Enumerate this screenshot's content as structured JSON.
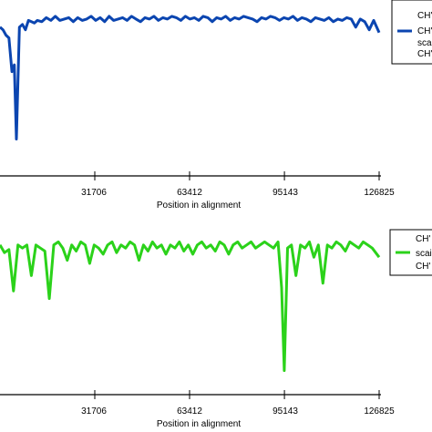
{
  "chart_data": [
    {
      "type": "line",
      "xlabel": "Position in alignment",
      "ylabel": "",
      "xlim": [
        0,
        126825
      ],
      "ylim": [
        0,
        1
      ],
      "xticks": [
        31706,
        63412,
        95143,
        126825
      ],
      "tick_labels": [
        "31706",
        "63412",
        "95143",
        "126825"
      ],
      "legend": {
        "placement": "right",
        "entries": [
          "CH'",
          "CH'",
          "scai",
          "CH'"
        ]
      },
      "series": [
        {
          "color": "#0b45b0",
          "x": [
            0,
            1000,
            2000,
            3000,
            4000,
            4800,
            5500,
            6500,
            7500,
            8500,
            9500,
            10500,
            11500,
            12500,
            14000,
            15500,
            17000,
            18500,
            20000,
            21500,
            23000,
            24500,
            26000,
            27500,
            29000,
            30500,
            32000,
            33500,
            35000,
            36500,
            38000,
            39500,
            41000,
            42500,
            44000,
            45500,
            47000,
            48500,
            50000,
            51500,
            53000,
            54500,
            56000,
            57500,
            59000,
            60500,
            62000,
            63500,
            65000,
            66500,
            68000,
            69500,
            71000,
            72500,
            74000,
            75500,
            77000,
            78500,
            80000,
            81500,
            83000,
            84500,
            86000,
            87500,
            89000,
            90500,
            92000,
            93500,
            95000,
            96500,
            98000,
            99500,
            101000,
            102500,
            104000,
            105500,
            107000,
            108500,
            110000,
            111500,
            113000,
            114500,
            116000,
            117500,
            119000,
            120500,
            122000,
            123500,
            125000,
            126825
          ],
          "y": [
            0.88,
            0.86,
            0.82,
            0.8,
            0.55,
            0.6,
            0.05,
            0.88,
            0.9,
            0.86,
            0.93,
            0.92,
            0.91,
            0.93,
            0.92,
            0.95,
            0.93,
            0.96,
            0.93,
            0.94,
            0.95,
            0.92,
            0.95,
            0.93,
            0.94,
            0.96,
            0.93,
            0.95,
            0.92,
            0.96,
            0.93,
            0.94,
            0.95,
            0.93,
            0.96,
            0.94,
            0.92,
            0.95,
            0.94,
            0.96,
            0.93,
            0.95,
            0.94,
            0.96,
            0.95,
            0.93,
            0.96,
            0.94,
            0.95,
            0.93,
            0.96,
            0.95,
            0.92,
            0.95,
            0.94,
            0.96,
            0.93,
            0.95,
            0.94,
            0.96,
            0.95,
            0.94,
            0.92,
            0.95,
            0.94,
            0.96,
            0.95,
            0.93,
            0.95,
            0.94,
            0.96,
            0.93,
            0.95,
            0.94,
            0.92,
            0.95,
            0.94,
            0.93,
            0.95,
            0.92,
            0.94,
            0.93,
            0.95,
            0.94,
            0.88,
            0.94,
            0.92,
            0.86,
            0.93,
            0.84
          ]
        }
      ]
    },
    {
      "type": "line",
      "xlabel": "Position in alignment",
      "ylabel": "",
      "xlim": [
        0,
        126825
      ],
      "ylim": [
        0,
        1
      ],
      "xticks": [
        31706,
        63412,
        95143,
        126825
      ],
      "tick_labels": [
        "31706",
        "63412",
        "95143",
        "126825"
      ],
      "legend": {
        "placement": "right",
        "entries": [
          "CH'",
          "scai",
          "CH'"
        ]
      },
      "series": [
        {
          "color": "#2bd21a",
          "x": [
            0,
            1500,
            3000,
            4500,
            6000,
            7500,
            9000,
            10500,
            12000,
            13500,
            15000,
            16500,
            18000,
            19500,
            21000,
            22500,
            24000,
            25500,
            27000,
            28500,
            30000,
            31500,
            33000,
            34500,
            36000,
            37500,
            39000,
            40500,
            42000,
            43500,
            45000,
            46500,
            48000,
            49500,
            51000,
            52500,
            54000,
            55500,
            57000,
            58500,
            60000,
            61500,
            63000,
            64500,
            66000,
            67500,
            69000,
            70500,
            72000,
            73500,
            75000,
            76500,
            78000,
            79500,
            81000,
            82500,
            84000,
            85500,
            87000,
            88500,
            90000,
            91500,
            93000,
            94200,
            95100,
            96200,
            97500,
            99000,
            100500,
            102000,
            103500,
            105000,
            106500,
            108000,
            109500,
            111000,
            112500,
            114000,
            115500,
            117000,
            118500,
            120000,
            121500,
            123000,
            124500,
            126825
          ],
          "y": [
            0.9,
            0.85,
            0.87,
            0.6,
            0.9,
            0.88,
            0.9,
            0.7,
            0.9,
            0.88,
            0.86,
            0.55,
            0.9,
            0.92,
            0.88,
            0.8,
            0.9,
            0.86,
            0.92,
            0.9,
            0.78,
            0.9,
            0.88,
            0.84,
            0.9,
            0.92,
            0.85,
            0.9,
            0.88,
            0.92,
            0.9,
            0.8,
            0.9,
            0.86,
            0.92,
            0.88,
            0.9,
            0.84,
            0.9,
            0.88,
            0.92,
            0.86,
            0.9,
            0.84,
            0.9,
            0.92,
            0.88,
            0.9,
            0.86,
            0.92,
            0.9,
            0.84,
            0.9,
            0.92,
            0.88,
            0.9,
            0.92,
            0.88,
            0.9,
            0.92,
            0.9,
            0.88,
            0.92,
            0.62,
            0.08,
            0.88,
            0.9,
            0.7,
            0.9,
            0.88,
            0.92,
            0.82,
            0.9,
            0.65,
            0.9,
            0.88,
            0.92,
            0.9,
            0.86,
            0.92,
            0.9,
            0.88,
            0.92,
            0.9,
            0.88,
            0.82
          ]
        }
      ]
    }
  ]
}
